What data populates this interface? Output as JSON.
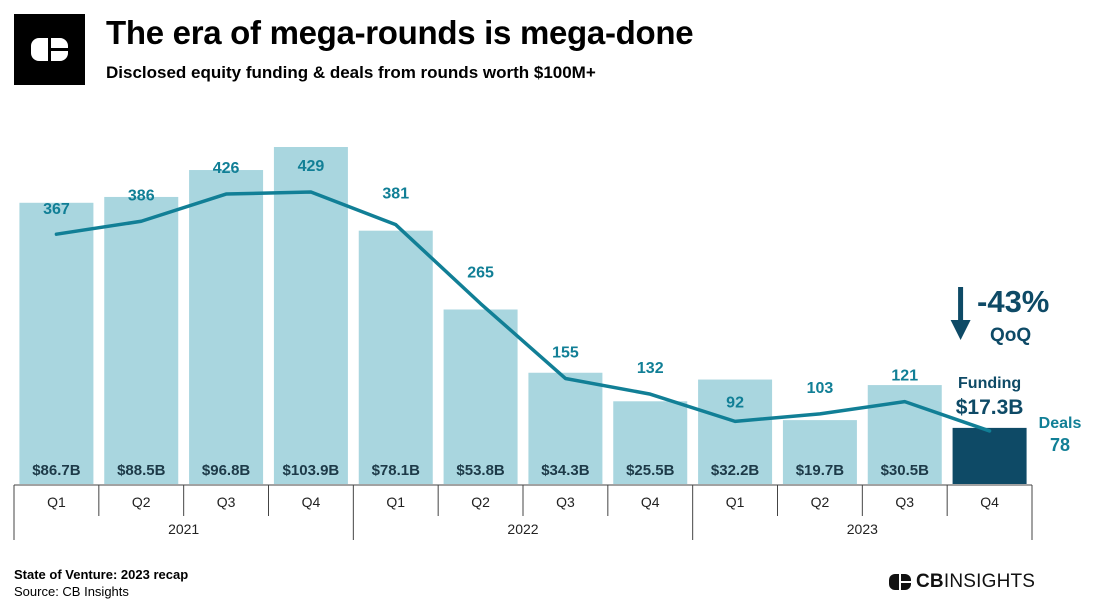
{
  "header": {
    "title": "The era of mega-rounds is mega-done",
    "subtitle": "Disclosed equity funding & deals from rounds worth $100M+"
  },
  "chart_data": {
    "type": "bar",
    "categories": [
      "Q1",
      "Q2",
      "Q3",
      "Q4",
      "Q1",
      "Q2",
      "Q3",
      "Q4",
      "Q1",
      "Q2",
      "Q3",
      "Q4"
    ],
    "years": [
      "2021",
      "2022",
      "2023"
    ],
    "funding": {
      "values": [
        86.7,
        88.5,
        96.8,
        103.9,
        78.1,
        53.8,
        34.3,
        25.5,
        32.2,
        19.7,
        30.5,
        17.3
      ],
      "labels": [
        "$86.7B",
        "$88.5B",
        "$96.8B",
        "$103.9B",
        "$78.1B",
        "$53.8B",
        "$34.3B",
        "$25.5B",
        "$32.2B",
        "$19.7B",
        "$30.5B",
        "$17.3B"
      ]
    },
    "deals": {
      "values": [
        367,
        386,
        426,
        429,
        381,
        265,
        155,
        132,
        92,
        103,
        121,
        78
      ]
    },
    "callout": {
      "change": "-43%",
      "period": "QoQ",
      "funding_label": "Funding",
      "funding_value": "$17.3B",
      "deals_label": "Deals",
      "deals_value": "78"
    },
    "colors": {
      "bar": "#a9d6df",
      "bar_highlight": "#0e4a66",
      "line": "#117f96",
      "callout": "#0e4a66"
    },
    "legend": "none",
    "grid": false
  },
  "footer": {
    "note": "State of Venture: 2023 recap",
    "source": "Source: CB Insights"
  },
  "brand": {
    "name_bold": "CB",
    "name_light": "INSIGHTS"
  }
}
